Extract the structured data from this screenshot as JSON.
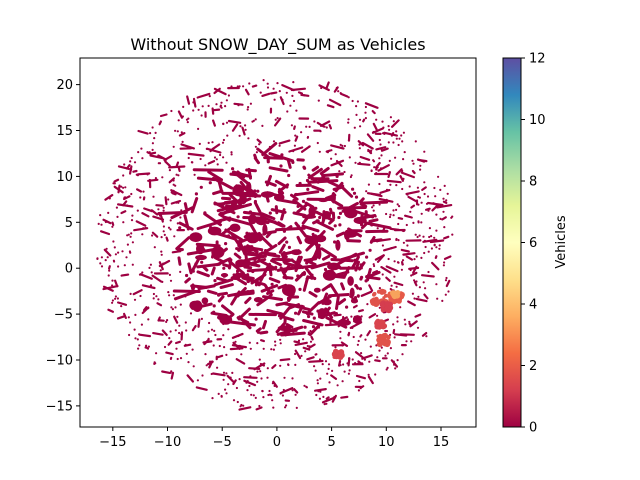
{
  "chart_data": {
    "type": "scatter",
    "title": "Without SNOW_DAY_SUM as Vehicles",
    "xlabel": "",
    "ylabel": "",
    "xlim": [
      -18,
      18.2
    ],
    "ylim": [
      -17.3,
      22.9
    ],
    "x_ticks": [
      -15,
      -10,
      -5,
      0,
      5,
      10,
      15
    ],
    "y_ticks": [
      -15,
      -10,
      -5,
      0,
      5,
      10,
      15,
      20
    ],
    "x_tick_labels": [
      "−15",
      "−10",
      "−5",
      "0",
      "5",
      "10",
      "15"
    ],
    "y_tick_labels": [
      "−15",
      "−10",
      "−5",
      "0",
      "5",
      "10",
      "15",
      "20"
    ],
    "grid": false,
    "colormap": "Spectral",
    "colorbar": {
      "label": "Vehicles",
      "range": [
        0,
        12
      ],
      "ticks": [
        0,
        2,
        4,
        6,
        8,
        10,
        12
      ],
      "tick_labels": [
        "0",
        "2",
        "4",
        "6",
        "8",
        "10",
        "12"
      ],
      "stops": [
        "#9e0142",
        "#d53e4f",
        "#f46d43",
        "#fdae61",
        "#fee08b",
        "#ffffbf",
        "#e6f598",
        "#abdda4",
        "#66c2a5",
        "#3288bd",
        "#5e4fa2"
      ]
    },
    "point_cloud": {
      "center": [
        0,
        2.7
      ],
      "radius_x": 16.5,
      "radius_y_top": 18.0,
      "radius_y_bottom": 18.2,
      "base_value": 0,
      "base_color": "#9e0142"
    },
    "highlight_clusters": [
      {
        "x": 9.3,
        "y": -3.2,
        "spread": 0.7,
        "value": 2.3,
        "color": "#e0534a"
      },
      {
        "x": 10.9,
        "y": -3.3,
        "spread": 0.6,
        "value": 2.5,
        "color": "#e65a48"
      },
      {
        "x": 10.0,
        "y": -4.2,
        "spread": 0.4,
        "value": 1.8,
        "color": "#d53e4f"
      },
      {
        "x": 9.5,
        "y": -6.1,
        "spread": 0.35,
        "value": 1.7,
        "color": "#d9444d"
      },
      {
        "x": 9.7,
        "y": -7.8,
        "spread": 0.5,
        "value": 2.0,
        "color": "#e0534a"
      },
      {
        "x": 5.6,
        "y": -9.4,
        "spread": 0.35,
        "value": 1.8,
        "color": "#d9444d"
      },
      {
        "x": 10.8,
        "y": -2.9,
        "spread": 0.25,
        "value": 4.0,
        "color": "#f7a35c"
      }
    ]
  }
}
